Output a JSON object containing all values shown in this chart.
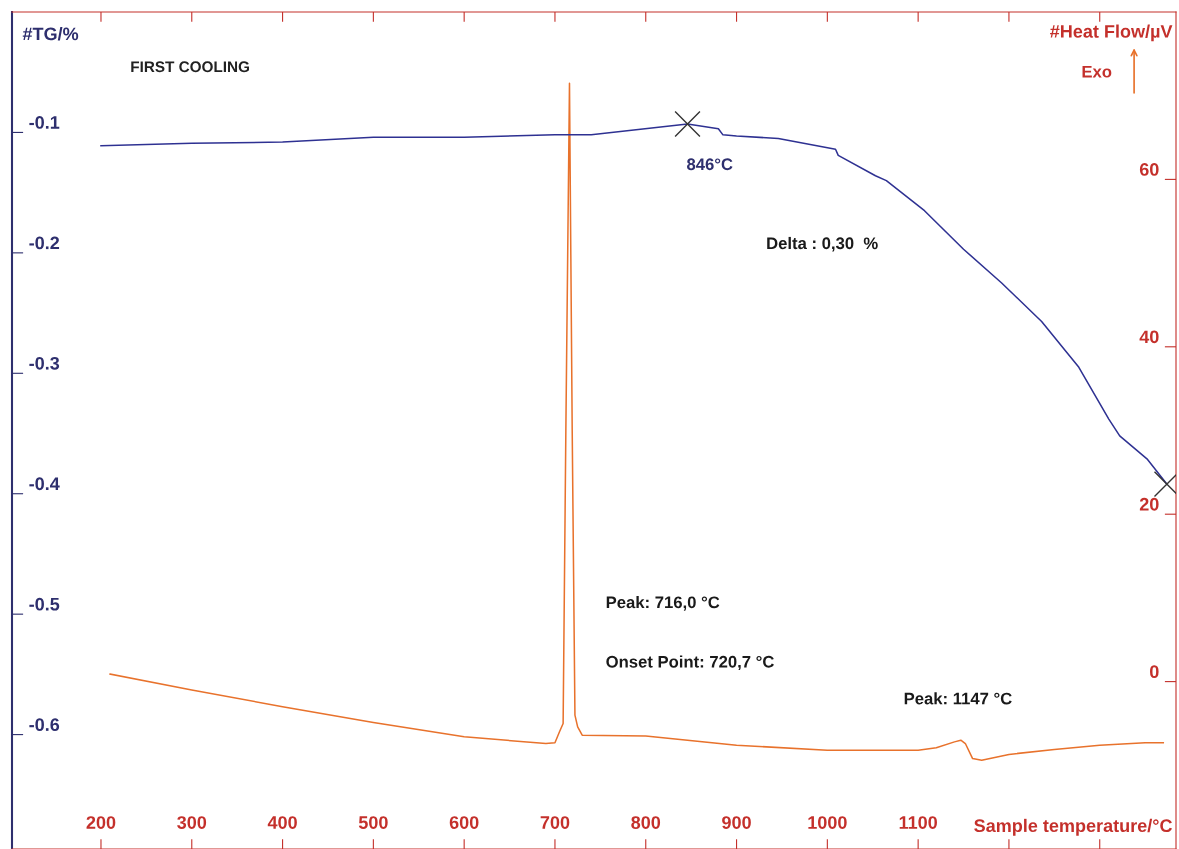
{
  "chart_data": {
    "type": "line",
    "title": "FIRST COOLING",
    "xlabel": "Sample temperature/°C",
    "ylabel": "#TG/%",
    "y2label": "#Heat Flow/µV",
    "xlim": [
      102,
      1384
    ],
    "xticks": [
      200,
      300,
      400,
      500,
      600,
      700,
      800,
      900,
      1000,
      1100,
      {
        "value": 1200,
        "label": null
      },
      {
        "value": 1300,
        "label": null
      }
    ],
    "ylim": [
      -0.695,
      0
    ],
    "yticks": [
      -0.1,
      -0.2,
      -0.3,
      -0.4,
      -0.5,
      -0.6
    ],
    "y2lim": [
      -20,
      80
    ],
    "y2ticks": [
      0,
      20,
      40,
      60
    ],
    "legend": false,
    "grid": false,
    "series": [
      {
        "color": "#2e3192",
        "x": [
          200,
          300,
          400,
          500,
          600,
          700,
          716,
          740,
          846,
          880,
          885,
          900,
          946,
          1009,
          1012,
          1053,
          1065,
          1107,
          1150,
          1192,
          1236,
          1277,
          1310,
          1322,
          1352,
          1374
        ],
        "values": [
          -0.111,
          -0.109,
          -0.108,
          -0.104,
          -0.104,
          -0.102,
          -0.102,
          -0.102,
          -0.093,
          -0.097,
          -0.102,
          -0.103,
          -0.105,
          -0.114,
          -0.119,
          -0.136,
          -0.14,
          -0.165,
          -0.197,
          -0.225,
          -0.257,
          -0.295,
          -0.338,
          -0.352,
          -0.371,
          -0.392
        ]
      },
      {
        "axis": "y2",
        "color": "#e8722c",
        "x": [
          210,
          300,
          400,
          500,
          600,
          690,
          700,
          705,
          709,
          712,
          716,
          719,
          722,
          725,
          730,
          800,
          900,
          1000,
          1100,
          1120,
          1140,
          1147,
          1152,
          1160,
          1170,
          1200,
          1250,
          1300,
          1350,
          1370
        ],
        "values": [
          0.9,
          -1.0,
          -3.0,
          -4.9,
          -6.6,
          -7.4,
          -7.3,
          -6.0,
          -5.0,
          30,
          71.5,
          30,
          -4.0,
          -5.4,
          -6.4,
          -6.5,
          -7.6,
          -8.2,
          -8.2,
          -7.9,
          -7.2,
          -7.0,
          -7.4,
          -9.2,
          -9.4,
          -8.7,
          -8.1,
          -7.6,
          -7.3,
          -7.3
        ]
      },
      {
        "type": "scatter",
        "marker": "cross",
        "color": "#333333",
        "x": [
          846,
          1374
        ],
        "values": [
          -0.093,
          -0.392
        ]
      }
    ],
    "annotations": [
      {
        "text": "846°C",
        "x": 846,
        "y": -0.093
      },
      "Delta : 0,30  %",
      "Peak: 716,0 °C",
      "Onset Point: 720,7 °C",
      "Peak: 1147 °C",
      "Exo"
    ]
  }
}
